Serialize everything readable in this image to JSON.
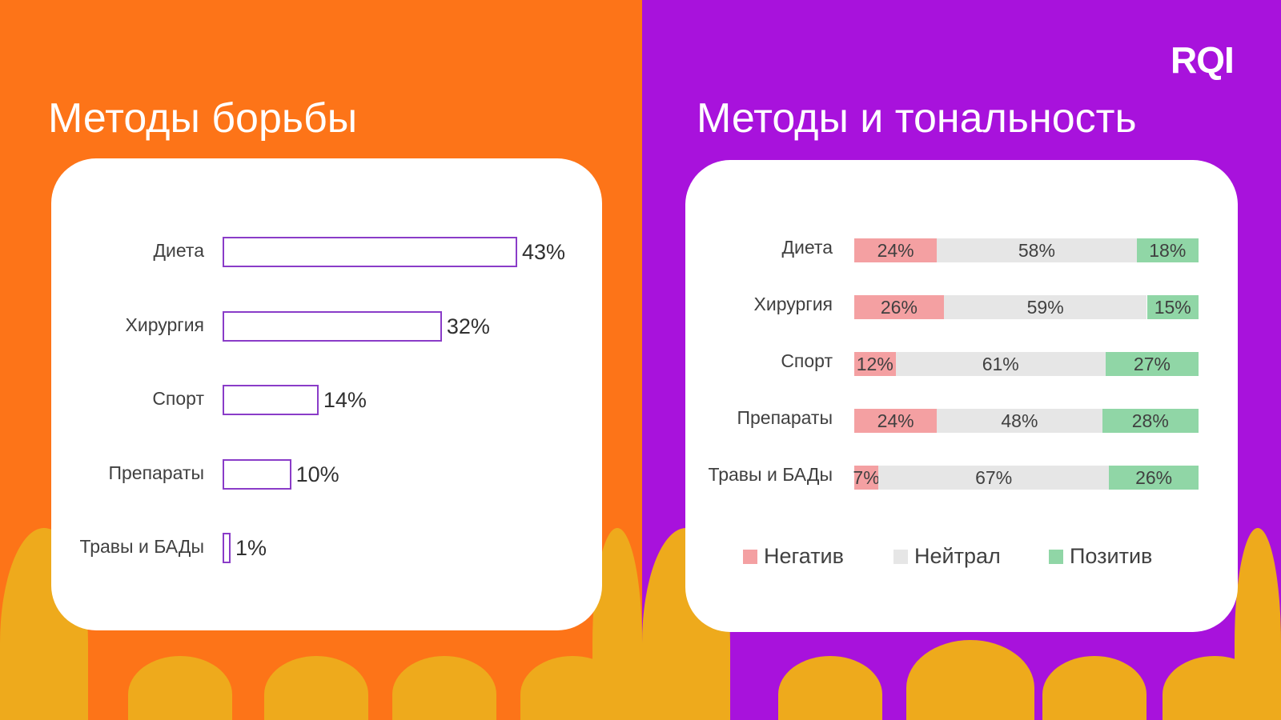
{
  "logo": "RQI",
  "colors": {
    "left_bg": "#fd7418",
    "right_bg": "#a812dc",
    "accent": "#eeaa1c",
    "bar_outline": "#8a3cc8",
    "negative": "#f4a0a2",
    "neutral": "#e6e6e6",
    "positive": "#90d6a6"
  },
  "chart_data": [
    {
      "type": "bar",
      "orientation": "horizontal",
      "title": "Методы борьбы",
      "categories": [
        "Диета",
        "Хирургия",
        "Спорт",
        "Препараты",
        "Травы и БАДы"
      ],
      "values": [
        43,
        32,
        14,
        10,
        1
      ],
      "labels": [
        "43%",
        "32%",
        "14%",
        "10%",
        "1%"
      ],
      "xlim": [
        0,
        43
      ]
    },
    {
      "type": "bar",
      "orientation": "horizontal",
      "stacked": true,
      "title": "Методы и тональность",
      "categories": [
        "Диета",
        "Хирургия",
        "Спорт",
        "Препараты",
        "Травы и БАДы"
      ],
      "series": [
        {
          "name": "Негатив",
          "values": [
            24,
            26,
            12,
            24,
            7
          ]
        },
        {
          "name": "Нейтрал",
          "values": [
            58,
            59,
            61,
            48,
            67
          ]
        },
        {
          "name": "Позитив",
          "values": [
            18,
            15,
            27,
            28,
            26
          ]
        }
      ],
      "legend": "bottom",
      "xlim": [
        0,
        100
      ]
    }
  ]
}
